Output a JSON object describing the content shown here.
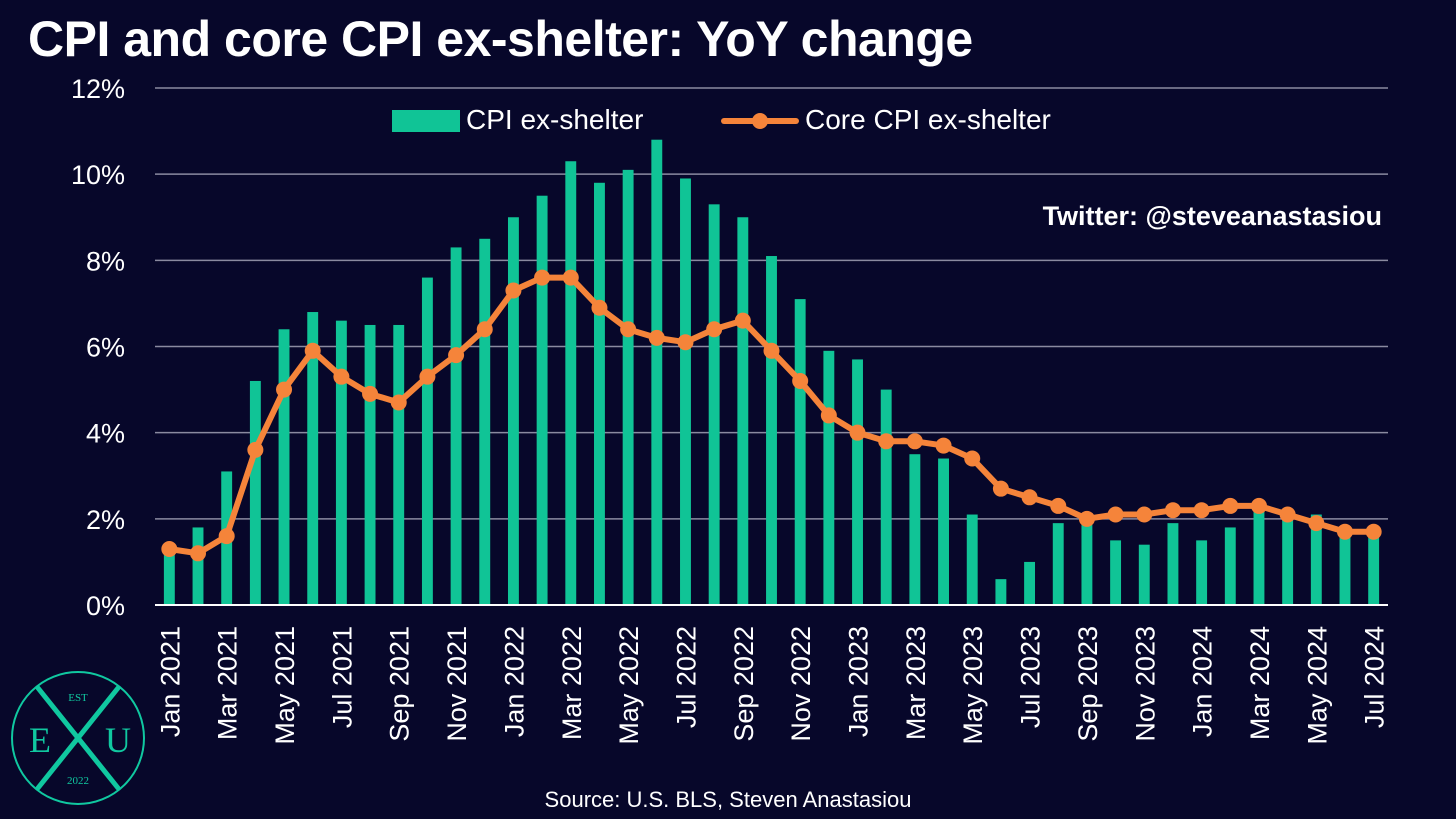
{
  "title": "CPI and core CPI ex-shelter: YoY change",
  "source": "Source: U.S. BLS, Steven Anastasiou",
  "watermark": "Twitter: @steveanastasiou",
  "logo": {
    "top_text": "EST",
    "left_letter": "E",
    "right_letter": "U",
    "bottom_text": "2022",
    "color": "#10c8a0"
  },
  "colors": {
    "background": "#07072a",
    "bar": "#10c496",
    "line": "#f5843a",
    "grid": "#8a8aa0",
    "text": "#ffffff"
  },
  "chart_data": {
    "type": "bar",
    "title": "CPI and core CPI ex-shelter: YoY change",
    "ylim": [
      0,
      12
    ],
    "y_ticks": [
      "0%",
      "2%",
      "4%",
      "6%",
      "8%",
      "10%",
      "12%"
    ],
    "grid": true,
    "legend_position": "top-center",
    "categories": [
      "Jan 2021",
      "Feb 2021",
      "Mar 2021",
      "Apr 2021",
      "May 2021",
      "Jun 2021",
      "Jul 2021",
      "Aug 2021",
      "Sep 2021",
      "Oct 2021",
      "Nov 2021",
      "Dec 2021",
      "Jan 2022",
      "Feb 2022",
      "Mar 2022",
      "Apr 2022",
      "May 2022",
      "Jun 2022",
      "Jul 2022",
      "Aug 2022",
      "Sep 2022",
      "Oct 2022",
      "Nov 2022",
      "Dec 2022",
      "Jan 2023",
      "Feb 2023",
      "Mar 2023",
      "Apr 2023",
      "May 2023",
      "Jun 2023",
      "Jul 2023",
      "Aug 2023",
      "Sep 2023",
      "Oct 2023",
      "Nov 2023",
      "Dec 2023",
      "Jan 2024",
      "Feb 2024",
      "Mar 2024",
      "Apr 2024",
      "May 2024",
      "Jun 2024",
      "Jul 2024"
    ],
    "x_tick_labels": [
      "Jan 2021",
      "",
      "Mar 2021",
      "",
      "May 2021",
      "",
      "Jul 2021",
      "",
      "Sep 2021",
      "",
      "Nov 2021",
      "",
      "Jan 2022",
      "",
      "Mar 2022",
      "",
      "May 2022",
      "",
      "Jul 2022",
      "",
      "Sep 2022",
      "",
      "Nov 2022",
      "",
      "Jan 2023",
      "",
      "Mar 2023",
      "",
      "May 2023",
      "",
      "Jul 2023",
      "",
      "Sep 2023",
      "",
      "Nov 2023",
      "",
      "Jan 2024",
      "",
      "Mar 2024",
      "",
      "May 2024",
      "",
      "Jul 2024"
    ],
    "series": [
      {
        "name": "CPI ex-shelter",
        "kind": "bar",
        "values": [
          1.3,
          1.8,
          3.1,
          5.2,
          6.4,
          6.8,
          6.6,
          6.5,
          6.5,
          7.6,
          8.3,
          8.5,
          9.0,
          9.5,
          10.3,
          9.8,
          10.1,
          10.8,
          9.9,
          9.3,
          9.0,
          8.1,
          7.1,
          5.9,
          5.7,
          5.0,
          3.5,
          3.4,
          2.1,
          0.6,
          1.0,
          1.9,
          2.0,
          1.5,
          1.4,
          1.9,
          1.5,
          1.8,
          2.4,
          2.0,
          2.1,
          1.8,
          1.7
        ]
      },
      {
        "name": "Core CPI ex-shelter",
        "kind": "line",
        "values": [
          1.3,
          1.2,
          1.6,
          3.6,
          5.0,
          5.9,
          5.3,
          4.9,
          4.7,
          5.3,
          5.8,
          6.4,
          7.3,
          7.6,
          7.6,
          6.9,
          6.4,
          6.2,
          6.1,
          6.4,
          6.6,
          5.9,
          5.2,
          4.4,
          4.0,
          3.8,
          3.8,
          3.7,
          3.4,
          2.7,
          2.5,
          2.3,
          2.0,
          2.1,
          2.1,
          2.2,
          2.2,
          2.3,
          2.3,
          2.1,
          1.9,
          1.7,
          1.7
        ]
      }
    ]
  }
}
